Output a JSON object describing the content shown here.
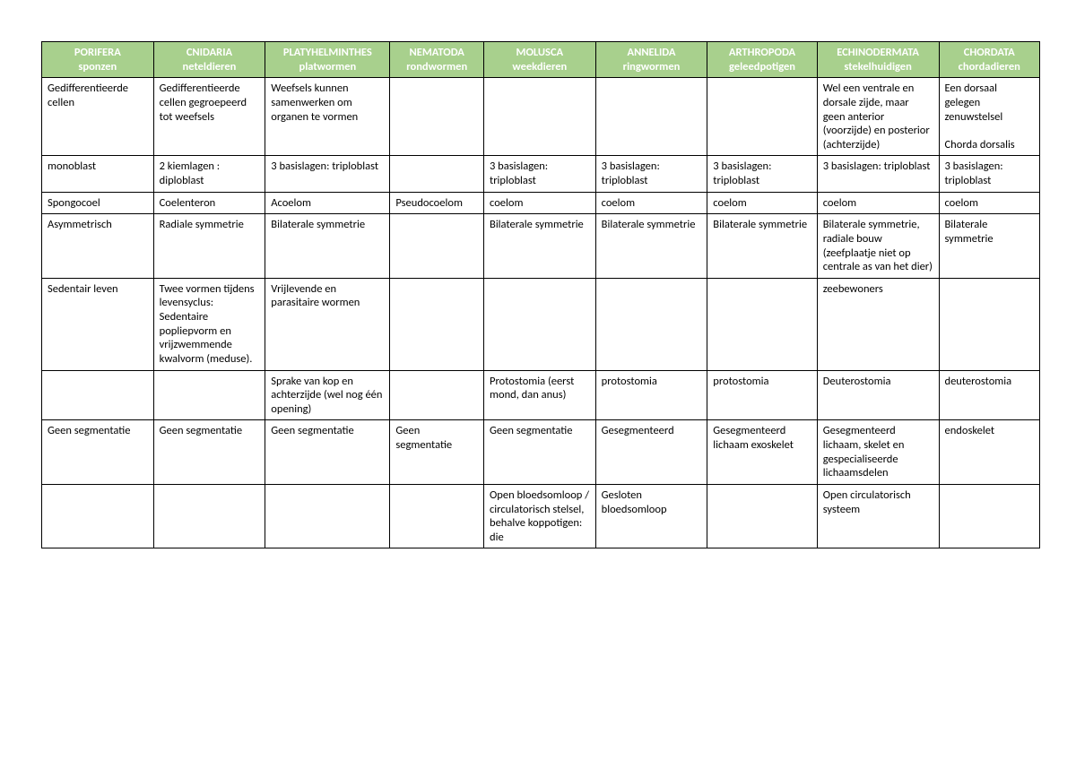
{
  "table": {
    "colors": {
      "header_bg": "#a8d08d",
      "header_text": "#ffffff",
      "border": "#000000",
      "cell_text": "#000000",
      "page_bg": "#ffffff"
    },
    "font": {
      "family": "Calibri, Arial, sans-serif",
      "header_size_pt": 10,
      "body_size_pt": 10
    },
    "columns": [
      {
        "latin": "PORIFERA",
        "dutch": "sponzen",
        "width_pct": 11.2
      },
      {
        "latin": "CNIDARIA",
        "dutch": "neteldieren",
        "width_pct": 11.2
      },
      {
        "latin": "PLATYHELMINTHES",
        "dutch": "platwormen",
        "width_pct": 12.5
      },
      {
        "latin": "NEMATODA",
        "dutch": "rondwormen",
        "width_pct": 9.4
      },
      {
        "latin": "MOLUSCA",
        "dutch": "weekdieren",
        "width_pct": 11.2
      },
      {
        "latin": "ANNELIDA",
        "dutch": "ringwormen",
        "width_pct": 11.2
      },
      {
        "latin": "ARTHROPODA",
        "dutch": "geleedpotigen",
        "width_pct": 11.0
      },
      {
        "latin": "ECHINODERMATA",
        "dutch": "stekelhuidigen",
        "width_pct": 12.2
      },
      {
        "latin": "CHORDATA",
        "dutch": "chordadieren",
        "width_pct": 10.1
      }
    ],
    "rows": [
      [
        "Gedifferentieerde cellen",
        "Gedifferentieerde cellen gegroepeerd tot weefsels",
        "Weefsels kunnen samenwerken om organen te vormen",
        "",
        "",
        "",
        "",
        "Wel een ventrale en dorsale zijde, maar geen anterior (voorzijde) en posterior (achterzijde)",
        "Een dorsaal gelegen zenuwstelsel\n\nChorda dorsalis"
      ],
      [
        "monoblast",
        "2 kiemlagen : diploblast",
        "3 basislagen: triploblast",
        "",
        "3 basislagen: triploblast",
        "3 basislagen: triploblast",
        "3 basislagen: triploblast",
        "3 basislagen: triploblast",
        "3 basislagen: triploblast"
      ],
      [
        "Spongocoel",
        "Coelenteron",
        "Acoelom",
        "Pseudocoelom",
        "coelom",
        "coelom",
        "coelom",
        "coelom",
        "coelom"
      ],
      [
        "Asymmetrisch",
        "Radiale symmetrie",
        "Bilaterale symmetrie",
        "",
        "Bilaterale symmetrie",
        "Bilaterale symmetrie",
        "Bilaterale symmetrie",
        "Bilaterale symmetrie, radiale bouw (zeefplaatje niet op centrale as van het dier)",
        "Bilaterale symmetrie"
      ],
      [
        "Sedentair leven",
        "Twee vormen tijdens levensyclus: Sedentaire popliepvorm en vrijzwemmende kwalvorm (meduse).",
        "Vrijlevende en parasitaire wormen",
        "",
        "",
        "",
        "",
        "zeebewoners",
        ""
      ],
      [
        "",
        "",
        "Sprake van kop en achterzijde (wel nog één opening)",
        "",
        "Protostomia (eerst mond, dan anus)",
        "protostomia",
        "protostomia",
        "Deuterostomia",
        "deuterostomia"
      ],
      [
        "Geen segmentatie",
        "Geen segmentatie",
        "Geen segmentatie",
        "Geen segmentatie",
        "Geen segmentatie",
        "Gesegmenteerd",
        "Gesegmenteerd lichaam exoskelet",
        "Gesegmenteerd lichaam, skelet en gespecialiseerde lichaamsdelen",
        "endoskelet"
      ],
      [
        "",
        "",
        "",
        "",
        "Open bloedsomloop / circulatorisch stelsel, behalve koppotigen: die",
        "Gesloten bloedsomloop",
        "",
        "Open circulatorisch systeem",
        ""
      ]
    ]
  }
}
